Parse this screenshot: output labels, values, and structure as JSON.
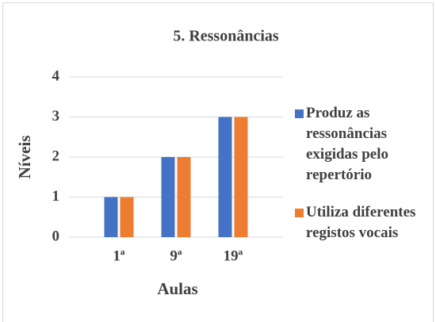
{
  "chart_data": {
    "type": "bar",
    "title": "5. Ressonâncias",
    "categories": [
      "1ª",
      "9ª",
      "19ª"
    ],
    "series": [
      {
        "name": "Produz as ressonâncias exigidas pelo repertório",
        "color": "#4472c4",
        "values": [
          1,
          2,
          3
        ]
      },
      {
        "name": "Utiliza diferentes registos vocais",
        "color": "#ed7d31",
        "values": [
          1,
          2,
          3
        ]
      }
    ],
    "xlabel": "Aulas",
    "ylabel": "Níveis",
    "ylim": [
      0,
      4
    ],
    "yticks": [
      0,
      1,
      2,
      3,
      4
    ],
    "grid": true,
    "legend": "right"
  }
}
